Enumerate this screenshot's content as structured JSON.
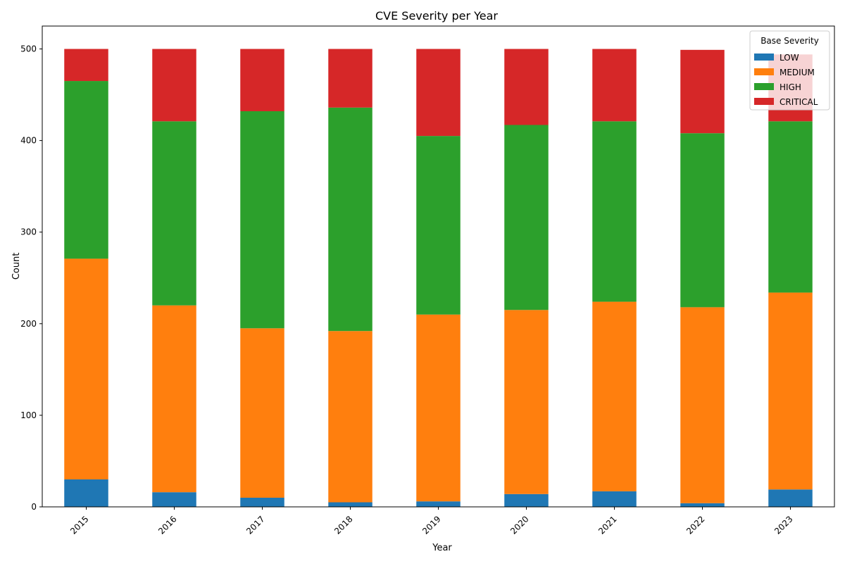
{
  "chart_data": {
    "type": "bar",
    "stacked": true,
    "title": "CVE Severity per Year",
    "xlabel": "Year",
    "ylabel": "Count",
    "categories": [
      "2015",
      "2016",
      "2017",
      "2018",
      "2019",
      "2020",
      "2021",
      "2022",
      "2023"
    ],
    "series": [
      {
        "name": "LOW",
        "color": "#1f77b4",
        "values": [
          30,
          16,
          10,
          5,
          6,
          14,
          17,
          4,
          19
        ]
      },
      {
        "name": "MEDIUM",
        "color": "#ff7f0e",
        "values": [
          241,
          204,
          185,
          187,
          204,
          201,
          207,
          214,
          215
        ]
      },
      {
        "name": "HIGH",
        "color": "#2ca02c",
        "values": [
          194,
          201,
          237,
          244,
          195,
          202,
          197,
          190,
          187
        ]
      },
      {
        "name": "CRITICAL",
        "color": "#d62728",
        "values": [
          35,
          79,
          68,
          64,
          95,
          83,
          79,
          91,
          73
        ]
      }
    ],
    "ylim": [
      0,
      525
    ],
    "yticks": [
      0,
      100,
      200,
      300,
      400,
      500
    ],
    "xtick_rotation": 45,
    "grid": false,
    "legend": {
      "title": "Base Severity",
      "placement": "top-right"
    }
  }
}
